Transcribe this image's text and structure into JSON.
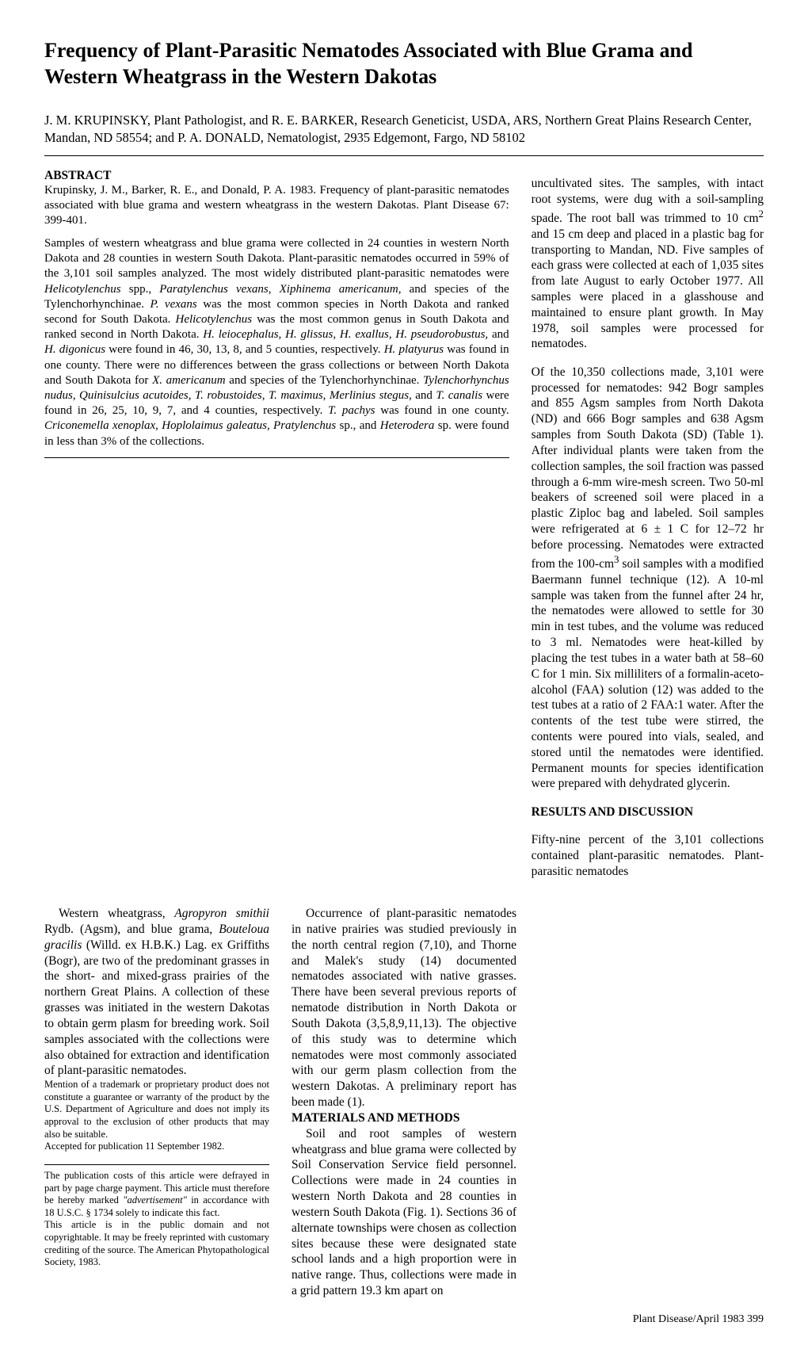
{
  "title": "Frequency of Plant-Parasitic Nematodes Associated with Blue Grama and Western Wheatgrass in the Western Dakotas",
  "authors": "J. M. KRUPINSKY, Plant Pathologist, and R. E. BARKER, Research Geneticist, USDA, ARS, Northern Great Plains Research Center, Mandan, ND 58554; and P. A. DONALD, Nematologist, 2935 Edgemont, Fargo, ND 58102",
  "abstract_label": "ABSTRACT",
  "abstract_citation": "Krupinsky, J. M., Barker, R. E., and Donald, P. A. 1983. Frequency of plant-parasitic nematodes associated with blue grama and western wheatgrass in the western Dakotas.   Plant Disease 67: 399-401.",
  "abstract_body_html": "Samples of western wheatgrass and blue grama were collected in 24 counties in western North Dakota and 28 counties in western South Dakota. Plant-parasitic nematodes occurred in 59% of the 3,101 soil samples analyzed. The most widely distributed plant-parasitic nematodes were <span class=\"italic\">Helicotylenchus</span> spp., <span class=\"italic\">Paratylenchus vexans, Xiphinema americanum,</span> and species of the Tylenchorhynchinae. <span class=\"italic\">P. vexans</span> was the most common species in North Dakota and ranked second for South Dakota. <span class=\"italic\">Helicotylenchus</span> was the most common genus in South Dakota and ranked second in North Dakota. <span class=\"italic\">H. leiocephalus, H. glissus, H. exallus, H. pseudorobustus,</span> and <span class=\"italic\">H. digonicus</span> were found in 46, 30, 13, 8, and 5 counties, respectively. <span class=\"italic\">H. platyurus</span> was found in one county. There were no differences between the grass collections or between North Dakota and South Dakota for <span class=\"italic\">X. americanum</span> and species of the Tylenchorhynchinae. <span class=\"italic\">Tylenchorhynchus nudus, Quinisulcius acutoides, T. robustoides, T. maximus, Merlinius stegus,</span> and <span class=\"italic\">T. canalis</span> were found in 26, 25, 10, 9, 7, and 4 counties, respectively. <span class=\"italic\">T. pachys</span> was found in one county. <span class=\"italic\">Criconemella xenoplax, Hoplolaimus galeatus, Pratylenchus</span> sp., and <span class=\"italic\">Heterodera</span> sp. were found in less than 3% of the collections.",
  "right_col_html": "uncultivated sites. The samples, with intact root systems, were dug with a soil-sampling spade. The root ball was trimmed to 10 cm<sup>2</sup> and 15 cm deep and placed in a plastic bag for transporting to Mandan, ND. Five samples of each grass were collected at each of 1,035 sites from late August to early October 1977. All samples were placed in a glasshouse and maintained to ensure plant growth. In May 1978, soil samples were processed for nematodes.",
  "right_col_p2_html": "Of the 10,350 collections made, 3,101 were processed for nematodes: 942 Bogr samples and 855 Agsm samples from North Dakota (ND) and 666 Bogr samples and 638 Agsm samples from South Dakota (SD) (Table 1). After individual plants were taken from the collection samples, the soil fraction was passed through a 6-mm wire-mesh screen. Two 50-ml beakers of screened soil were placed in a plastic Ziploc bag and labeled. Soil samples were refrigerated at 6 ± 1 C for 12–72 hr before processing. Nematodes were extracted from the 100-cm<sup>3</sup> soil samples with a modified Baermann funnel technique (12). A 10-ml sample was taken from the funnel after 24 hr, the nematodes were allowed to settle for 30 min in test tubes, and the volume was reduced to 3 ml. Nematodes were heat-killed by placing the test tubes in a water bath at 58–60 C for 1 min. Six milliliters of a formalin-aceto-alcohol (FAA) solution (12) was added to the test tubes at a ratio of 2 FAA:1 water. After the contents of the test tube were stirred, the contents were poured into vials, sealed, and stored until the nematodes were identified. Permanent mounts for species identification were prepared with dehydrated glycerin.",
  "col1_p1_html": "Western wheatgrass, <span class=\"italic\">Agropyron smithii</span> Rydb. (Agsm), and blue grama, <span class=\"italic\">Bouteloua gracilis</span> (Willd. ex H.B.K.) Lag. ex Griffiths (Bogr), are two of the predominant grasses in the short- and mixed-grass prairies of the northern Great Plains. A collection of these grasses was initiated in the western Dakotas to obtain germ plasm for breeding work. Soil samples associated with the collections were also obtained for extraction and identification of plant-parasitic nematodes.",
  "col1_fn1": "Mention of a trademark or proprietary product does not constitute a guarantee or warranty of the product by the U.S. Department of Agriculture and does not imply its approval to the exclusion of other products that may also be suitable.",
  "col1_fn2": "Accepted for publication 11 September 1982.",
  "col1_fn3_html": "The publication costs of this article were defrayed in part by page charge payment. This article must therefore be hereby marked <span class=\"italic\">\"advertisement\"</span> in accordance with 18 U.S.C. § 1734 solely to indicate this fact.",
  "col1_fn4": "This article is in the public domain and not copyrightable. It may be freely reprinted with customary crediting of the source. The American Phytopathological Society, 1983.",
  "col2_p1_html": "Occurrence of plant-parasitic nematodes in native prairies was studied previously in the north central region (7,10), and Thorne and Malek's study (14) documented nematodes associated with native grasses. There have been several previous reports of nematode distribution in North Dakota or South Dakota (3,5,8,9,11,13). The objective of this study was to determine which nematodes were most commonly associated with our germ plasm collection from the western Dakotas. A preliminary report has been made (1).",
  "materials_head": "MATERIALS AND METHODS",
  "col2_p2_html": "Soil and root samples of western wheatgrass and blue grama were collected by Soil Conservation Service field personnel. Collections were made in 24 counties in western North Dakota and 28 counties in western South Dakota (Fig. 1). Sections 36 of alternate townships were chosen as collection sites because these were designated state school lands and a high proportion were in native range. Thus, collections were made in a grid pattern 19.3 km apart on",
  "results_head": "RESULTS AND DISCUSSION",
  "col3_results_html": "Fifty-nine percent of the 3,101 collections contained plant-parasitic nematodes. Plant-parasitic nematodes",
  "footer": "Plant Disease/April 1983   399"
}
